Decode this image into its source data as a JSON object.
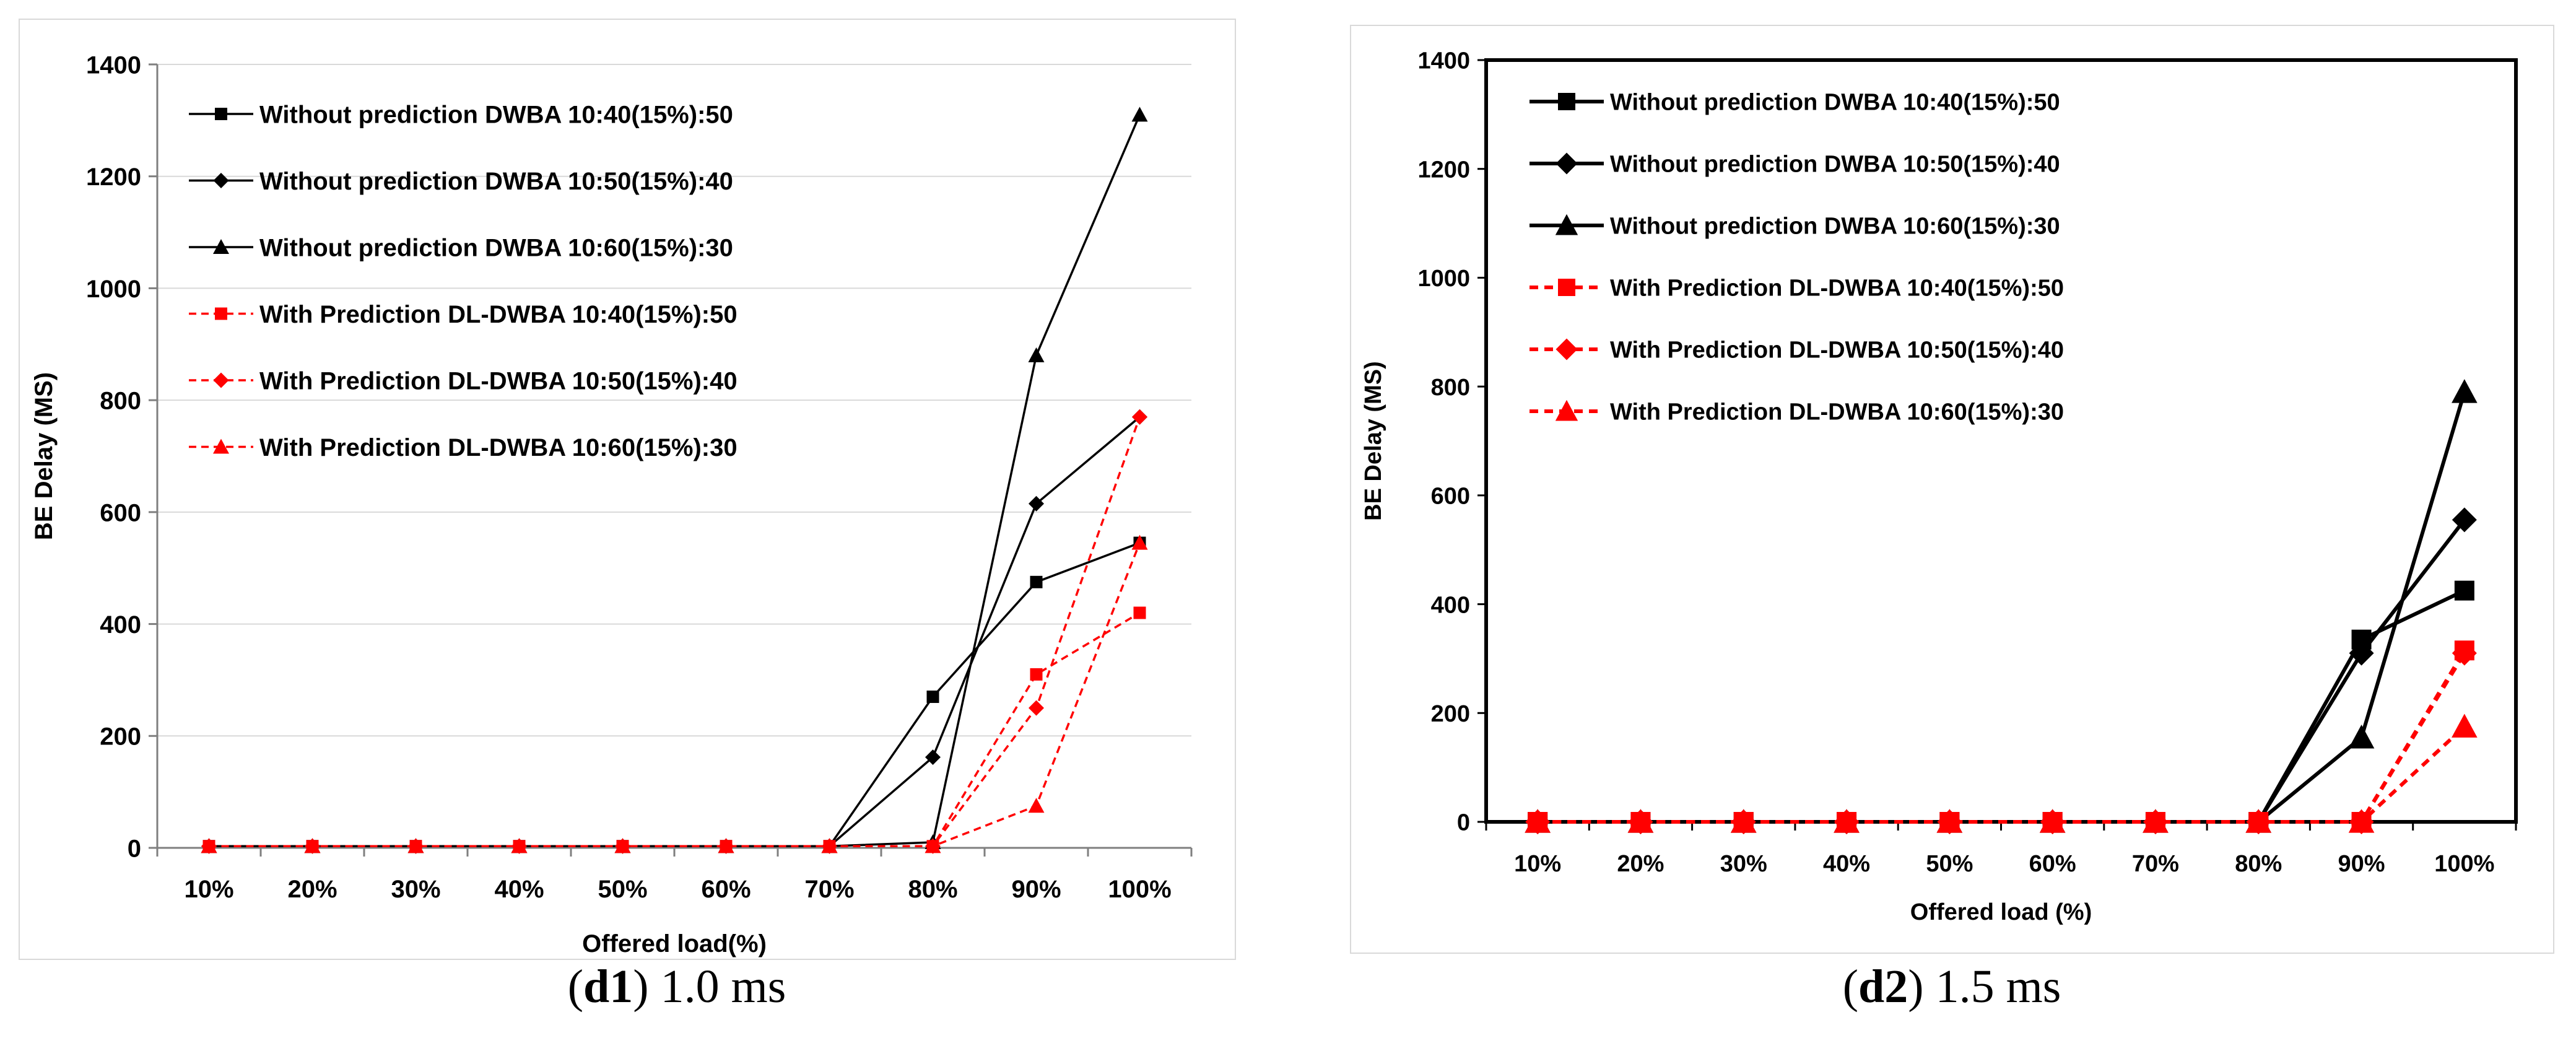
{
  "chart_data": [
    {
      "type": "line",
      "caption_label": "d1",
      "caption_text": "1.0 ms",
      "xlabel": "Offered load(%)",
      "ylabel": "BE Delay (MS)",
      "ylim": [
        0,
        1400
      ],
      "yticks": [
        "0",
        "200",
        "400",
        "600",
        "800",
        "1000",
        "1200",
        "1400"
      ],
      "categories": [
        "10%",
        "20%",
        "30%",
        "40%",
        "50%",
        "60%",
        "70%",
        "80%",
        "90%",
        "100%"
      ],
      "gridlines": true,
      "legend_position": "top-left",
      "series": [
        {
          "name": "Without prediction DWBA 10:40(15%):50",
          "color": "#000000",
          "dashed": false,
          "marker": "square",
          "values": [
            3,
            3,
            3,
            3,
            3,
            3,
            3,
            270,
            475,
            545
          ]
        },
        {
          "name": "Without prediction DWBA 10:50(15%):40",
          "color": "#000000",
          "dashed": false,
          "marker": "diamond",
          "values": [
            3,
            3,
            3,
            3,
            3,
            3,
            3,
            162,
            615,
            770
          ]
        },
        {
          "name": "Without prediction DWBA 10:60(15%):30",
          "color": "#000000",
          "dashed": false,
          "marker": "triangle",
          "values": [
            3,
            3,
            3,
            3,
            3,
            3,
            3,
            10,
            880,
            1310
          ]
        },
        {
          "name": "With Prediction DL-DWBA 10:40(15%):50",
          "color": "#ff0000",
          "dashed": true,
          "marker": "square",
          "values": [
            3,
            3,
            3,
            3,
            3,
            3,
            3,
            3,
            310,
            420
          ]
        },
        {
          "name": "With Prediction DL-DWBA 10:50(15%):40",
          "color": "#ff0000",
          "dashed": true,
          "marker": "diamond",
          "values": [
            3,
            3,
            3,
            3,
            3,
            3,
            3,
            3,
            250,
            770
          ]
        },
        {
          "name": "With Prediction DL-DWBA 10:60(15%):30",
          "color": "#ff0000",
          "dashed": true,
          "marker": "triangle",
          "values": [
            3,
            3,
            3,
            3,
            3,
            3,
            3,
            3,
            75,
            545
          ]
        }
      ]
    },
    {
      "type": "line",
      "caption_label": "d2",
      "caption_text": "1.5 ms",
      "xlabel": "Offered load (%)",
      "ylabel": "BE Delay (MS)",
      "ylim": [
        0,
        1400
      ],
      "yticks": [
        "0",
        "200",
        "400",
        "600",
        "800",
        "1000",
        "1200",
        "1400"
      ],
      "categories": [
        "10%",
        "20%",
        "30%",
        "40%",
        "50%",
        "60%",
        "70%",
        "80%",
        "90%",
        "100%"
      ],
      "gridlines": false,
      "legend_position": "top-left",
      "series": [
        {
          "name": "Without prediction DWBA 10:40(15%):50",
          "color": "#000000",
          "dashed": false,
          "marker": "square",
          "values": [
            0,
            0,
            0,
            0,
            0,
            0,
            0,
            0,
            335,
            425
          ]
        },
        {
          "name": "Without prediction DWBA 10:50(15%):40",
          "color": "#000000",
          "dashed": false,
          "marker": "diamond",
          "values": [
            0,
            0,
            0,
            0,
            0,
            0,
            0,
            0,
            310,
            555
          ]
        },
        {
          "name": "Without prediction DWBA 10:60(15%):30",
          "color": "#000000",
          "dashed": false,
          "marker": "triangle",
          "values": [
            0,
            0,
            0,
            0,
            0,
            0,
            0,
            0,
            155,
            790
          ]
        },
        {
          "name": "With Prediction DL-DWBA 10:40(15%):50",
          "color": "#ff0000",
          "dashed": true,
          "marker": "square",
          "values": [
            0,
            0,
            0,
            0,
            0,
            0,
            0,
            0,
            0,
            315
          ]
        },
        {
          "name": "With Prediction DL-DWBA 10:50(15%):40",
          "color": "#ff0000",
          "dashed": true,
          "marker": "diamond",
          "values": [
            0,
            0,
            0,
            0,
            0,
            0,
            0,
            0,
            0,
            310
          ]
        },
        {
          "name": "With Prediction DL-DWBA 10:60(15%):30",
          "color": "#ff0000",
          "dashed": true,
          "marker": "triangle",
          "values": [
            0,
            0,
            0,
            0,
            0,
            0,
            0,
            0,
            0,
            175
          ]
        }
      ]
    }
  ]
}
